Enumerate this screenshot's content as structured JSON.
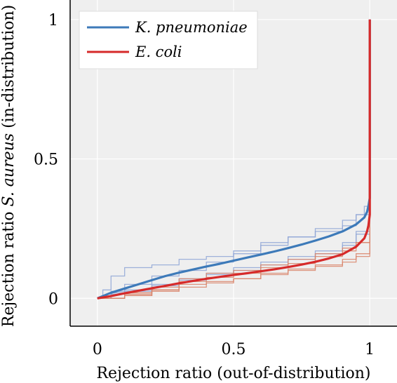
{
  "chart_data": {
    "type": "line",
    "xlabel": "Rejection ratio (out-of-distribution)",
    "ylabel_prefix": "Rejection ratio ",
    "ylabel_italic": "S. aureus",
    "ylabel_suffix": " (in-distribution)",
    "xlim": [
      -0.1,
      1.1
    ],
    "ylim": [
      -0.1,
      1.07
    ],
    "x_ticks": [
      0,
      0.5,
      1
    ],
    "x_tick_labels": [
      "0",
      "0.5",
      "1"
    ],
    "y_ticks": [
      0,
      0.5,
      1
    ],
    "y_tick_labels": [
      "0",
      "0.5",
      "1"
    ],
    "grid": true,
    "legend_position": "top-left",
    "series": [
      {
        "name": "K. pneumoniae",
        "color": "#3d7ab9",
        "x": [
          0,
          0.05,
          0.1,
          0.15,
          0.2,
          0.25,
          0.3,
          0.35,
          0.4,
          0.45,
          0.5,
          0.55,
          0.6,
          0.65,
          0.7,
          0.75,
          0.8,
          0.85,
          0.9,
          0.95,
          0.98,
          0.99,
          0.995,
          1,
          1
        ],
        "y": [
          0,
          0.02,
          0.035,
          0.05,
          0.065,
          0.08,
          0.092,
          0.103,
          0.114,
          0.124,
          0.135,
          0.146,
          0.157,
          0.168,
          0.18,
          0.193,
          0.207,
          0.222,
          0.24,
          0.265,
          0.29,
          0.31,
          0.33,
          0.36,
          1
        ]
      },
      {
        "name": "E. coli",
        "color": "#d62a2a",
        "x": [
          0,
          0.05,
          0.1,
          0.15,
          0.2,
          0.25,
          0.3,
          0.35,
          0.4,
          0.45,
          0.5,
          0.55,
          0.6,
          0.65,
          0.7,
          0.75,
          0.8,
          0.85,
          0.9,
          0.95,
          0.98,
          0.99,
          0.995,
          1,
          1
        ],
        "y": [
          0,
          0.008,
          0.018,
          0.027,
          0.036,
          0.045,
          0.054,
          0.062,
          0.07,
          0.077,
          0.084,
          0.09,
          0.097,
          0.104,
          0.112,
          0.121,
          0.131,
          0.143,
          0.158,
          0.185,
          0.215,
          0.24,
          0.26,
          0.3,
          1
        ]
      }
    ],
    "runs": [
      {
        "series": "K. pneumoniae",
        "color": "#8fa6d6",
        "x": [
          0,
          0.02,
          0.05,
          0.1,
          0.2,
          0.3,
          0.4,
          0.5,
          0.6,
          0.7,
          0.8,
          0.9,
          0.95,
          0.98,
          1
        ],
        "y": [
          0,
          0.03,
          0.08,
          0.11,
          0.12,
          0.14,
          0.15,
          0.17,
          0.2,
          0.22,
          0.24,
          0.26,
          0.3,
          0.33,
          0.36
        ]
      },
      {
        "series": "K. pneumoniae",
        "color": "#8fa6d6",
        "x": [
          0,
          0.05,
          0.1,
          0.2,
          0.3,
          0.4,
          0.5,
          0.6,
          0.7,
          0.8,
          0.9,
          0.95,
          1
        ],
        "y": [
          0,
          0.025,
          0.05,
          0.08,
          0.1,
          0.13,
          0.16,
          0.19,
          0.22,
          0.25,
          0.28,
          0.3,
          0.35
        ]
      },
      {
        "series": "K. pneumoniae",
        "color": "#8fa6d6",
        "x": [
          0,
          0.05,
          0.1,
          0.2,
          0.3,
          0.4,
          0.5,
          0.6,
          0.7,
          0.8,
          0.9,
          0.95,
          1
        ],
        "y": [
          0,
          0.02,
          0.03,
          0.05,
          0.07,
          0.09,
          0.11,
          0.13,
          0.15,
          0.17,
          0.2,
          0.24,
          0.33
        ]
      },
      {
        "series": "K. pneumoniae",
        "color": "#8fa6d6",
        "x": [
          0,
          0.05,
          0.1,
          0.2,
          0.3,
          0.4,
          0.5,
          0.6,
          0.7,
          0.8,
          0.9,
          0.95,
          1
        ],
        "y": [
          0,
          0.015,
          0.025,
          0.045,
          0.065,
          0.085,
          0.1,
          0.12,
          0.14,
          0.16,
          0.19,
          0.23,
          0.32
        ]
      },
      {
        "series": "E. coli",
        "color": "#d9846a",
        "x": [
          0,
          0.1,
          0.2,
          0.3,
          0.4,
          0.5,
          0.6,
          0.7,
          0.8,
          0.9,
          0.95,
          1
        ],
        "y": [
          0,
          0.01,
          0.03,
          0.07,
          0.09,
          0.1,
          0.12,
          0.14,
          0.16,
          0.18,
          0.2,
          0.3
        ]
      },
      {
        "series": "E. coli",
        "color": "#d9846a",
        "x": [
          0,
          0.1,
          0.2,
          0.3,
          0.4,
          0.5,
          0.6,
          0.7,
          0.8,
          0.9,
          0.95,
          1
        ],
        "y": [
          0,
          0.02,
          0.04,
          0.06,
          0.075,
          0.09,
          0.11,
          0.125,
          0.15,
          0.17,
          0.2,
          0.28
        ]
      },
      {
        "series": "E. coli",
        "color": "#d9846a",
        "x": [
          0,
          0.1,
          0.2,
          0.3,
          0.4,
          0.5,
          0.6,
          0.7,
          0.8,
          0.9,
          0.95,
          1
        ],
        "y": [
          0,
          0.015,
          0.03,
          0.05,
          0.06,
          0.07,
          0.085,
          0.1,
          0.115,
          0.13,
          0.15,
          0.27
        ]
      },
      {
        "series": "E. coli",
        "color": "#d9846a",
        "x": [
          0,
          0.1,
          0.2,
          0.3,
          0.4,
          0.5,
          0.6,
          0.7,
          0.8,
          0.9,
          0.95,
          1
        ],
        "y": [
          0,
          0.01,
          0.025,
          0.04,
          0.055,
          0.07,
          0.09,
          0.105,
          0.12,
          0.14,
          0.16,
          0.26
        ]
      }
    ],
    "colors": {
      "plot_background": "#efefef",
      "grid": "#ffffff",
      "axis": "#000000"
    }
  }
}
